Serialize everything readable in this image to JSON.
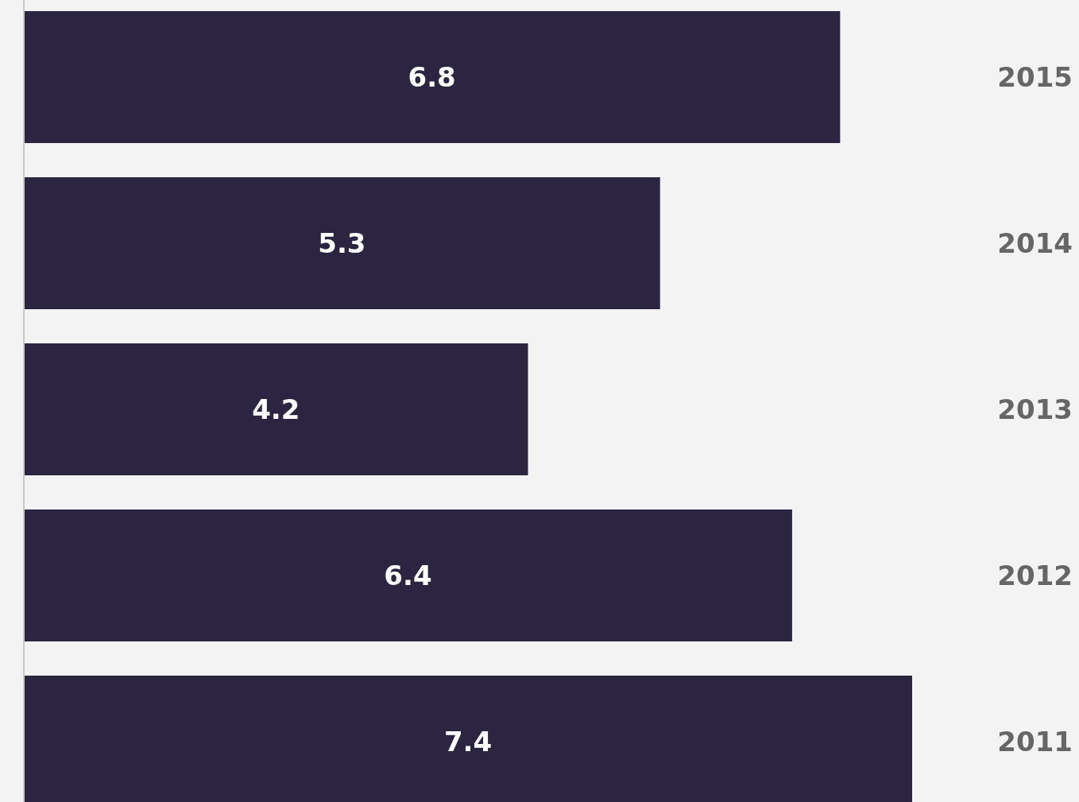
{
  "chart_data": {
    "type": "bar",
    "orientation": "horizontal",
    "categories": [
      "2015",
      "2014",
      "2013",
      "2012",
      "2011"
    ],
    "values": [
      6.8,
      5.3,
      4.2,
      6.4,
      7.4
    ],
    "color": "#2c2541",
    "data_labels": true
  }
}
